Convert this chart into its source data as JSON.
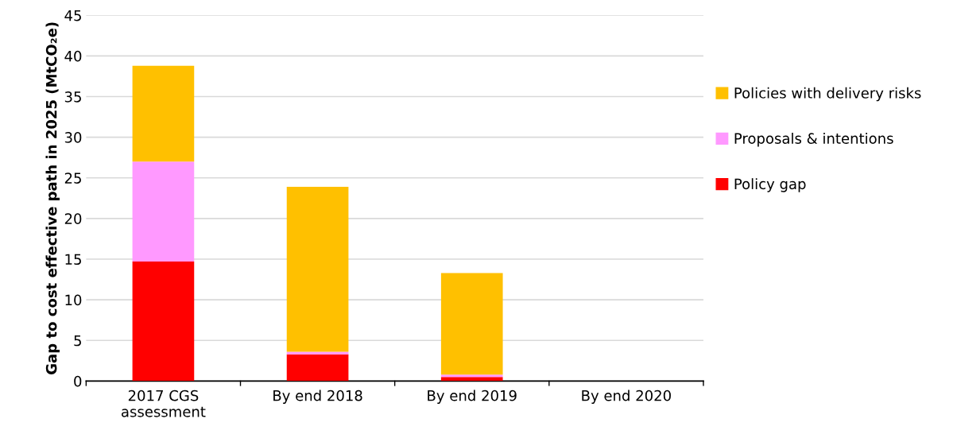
{
  "chart_data": {
    "type": "bar",
    "stacked": true,
    "ylabel": "Gap to cost effective path in 2025 (MtCO₂e)",
    "categories": [
      "2017 CGS\nassessment",
      "By end 2018",
      "By end 2019",
      "By end 2020"
    ],
    "series": [
      {
        "name": "Policy gap",
        "color": "#ff0000",
        "values": [
          14.7,
          3.3,
          0.5,
          0
        ]
      },
      {
        "name": "Proposals & intentions",
        "color": "#ff99ff",
        "values": [
          12.3,
          0.3,
          0.3,
          0
        ]
      },
      {
        "name": "Policies with delivery risks",
        "color": "#ffc000",
        "values": [
          11.8,
          20.3,
          12.5,
          0
        ]
      }
    ],
    "ylim": [
      0,
      45
    ],
    "yticks": [
      0,
      5,
      10,
      15,
      20,
      25,
      30,
      35,
      40,
      45
    ],
    "grid": "y",
    "legend": "right"
  }
}
